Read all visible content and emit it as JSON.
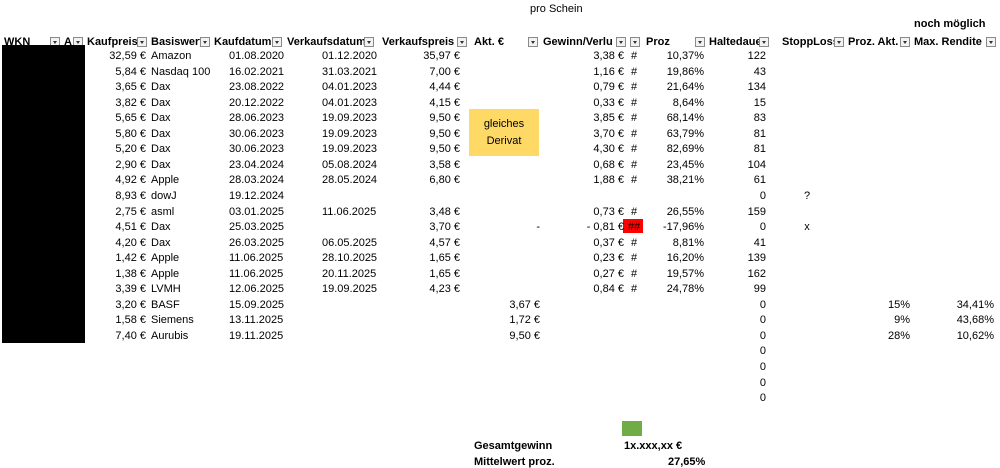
{
  "top": {
    "pro_schein": "pro Schein",
    "noch_moeglich": "noch möglich"
  },
  "headers": {
    "wkn": "WKN",
    "a": "A",
    "kaufpreis": "Kaufpreis",
    "basiswert": "Basiswert",
    "kaufdatum": "Kaufdatum",
    "verkaufsdatum": "Verkaufsdatum",
    "verkaufspreis": "Verkaufspreis",
    "akt": "Akt. €",
    "gewinn": "Gewinn/Verlu",
    "proz": "Proz",
    "haltedauer": "Haltedaue",
    "stopploss": "StoppLoss",
    "proz_akt": "Proz. Akt.",
    "max_rendite": "Max. Rendite"
  },
  "note": {
    "line1": "gleiches",
    "line2": "Derivat"
  },
  "rows": [
    {
      "kaufpreis": "32,59 €",
      "basiswert": "Amazon",
      "kaufdatum": "01.08.2020",
      "verkaufsdatum": "01.12.2020",
      "verkaufspreis": "35,97 €",
      "akt": "",
      "gewinn": "3,38 €",
      "hash": "#",
      "proz": "10,37%",
      "halte": "122",
      "stopp": "",
      "proz_akt": "",
      "max": ""
    },
    {
      "kaufpreis": "5,84 €",
      "basiswert": "Nasdaq 100",
      "kaufdatum": "16.02.2021",
      "verkaufsdatum": "31.03.2021",
      "verkaufspreis": "7,00 €",
      "akt": "",
      "gewinn": "1,16 €",
      "hash": "#",
      "proz": "19,86%",
      "halte": "43",
      "stopp": "",
      "proz_akt": "",
      "max": ""
    },
    {
      "kaufpreis": "3,65 €",
      "basiswert": "Dax",
      "kaufdatum": "23.08.2022",
      "verkaufsdatum": "04.01.2023",
      "verkaufspreis": "4,44 €",
      "akt": "",
      "gewinn": "0,79 €",
      "hash": "#",
      "proz": "21,64%",
      "halte": "134",
      "stopp": "",
      "proz_akt": "",
      "max": ""
    },
    {
      "kaufpreis": "3,82 €",
      "basiswert": "Dax",
      "kaufdatum": "20.12.2022",
      "verkaufsdatum": "04.01.2023",
      "verkaufspreis": "4,15 €",
      "akt": "",
      "gewinn": "0,33 €",
      "hash": "#",
      "proz": "8,64%",
      "halte": "15",
      "stopp": "",
      "proz_akt": "",
      "max": ""
    },
    {
      "kaufpreis": "5,65 €",
      "basiswert": "Dax",
      "kaufdatum": "28.06.2023",
      "verkaufsdatum": "19.09.2023",
      "verkaufspreis": "9,50 €",
      "akt": "",
      "gewinn": "3,85 €",
      "hash": "#",
      "proz": "68,14%",
      "halte": "83",
      "stopp": "",
      "proz_akt": "",
      "max": ""
    },
    {
      "kaufpreis": "5,80 €",
      "basiswert": "Dax",
      "kaufdatum": "30.06.2023",
      "verkaufsdatum": "19.09.2023",
      "verkaufspreis": "9,50 €",
      "akt": "",
      "gewinn": "3,70 €",
      "hash": "#",
      "proz": "63,79%",
      "halte": "81",
      "stopp": "",
      "proz_akt": "",
      "max": ""
    },
    {
      "kaufpreis": "5,20 €",
      "basiswert": "Dax",
      "kaufdatum": "30.06.2023",
      "verkaufsdatum": "19.09.2023",
      "verkaufspreis": "9,50 €",
      "akt": "",
      "gewinn": "4,30 €",
      "hash": "#",
      "proz": "82,69%",
      "halte": "81",
      "stopp": "",
      "proz_akt": "",
      "max": ""
    },
    {
      "kaufpreis": "2,90 €",
      "basiswert": "Dax",
      "kaufdatum": "23.04.2024",
      "verkaufsdatum": "05.08.2024",
      "verkaufspreis": "3,58 €",
      "akt": "",
      "gewinn": "0,68 €",
      "hash": "#",
      "proz": "23,45%",
      "halte": "104",
      "stopp": "",
      "proz_akt": "",
      "max": ""
    },
    {
      "kaufpreis": "4,92 €",
      "basiswert": "Apple",
      "kaufdatum": "28.03.2024",
      "verkaufsdatum": "28.05.2024",
      "verkaufspreis": "6,80 €",
      "akt": "",
      "gewinn": "1,88 €",
      "hash": "#",
      "proz": "38,21%",
      "halte": "61",
      "stopp": "",
      "proz_akt": "",
      "max": ""
    },
    {
      "kaufpreis": "8,93 €",
      "basiswert": "dowJ",
      "kaufdatum": "19.12.2024",
      "verkaufsdatum": "",
      "verkaufspreis": "",
      "akt": "",
      "gewinn": "",
      "hash": "",
      "proz": "",
      "halte": "0",
      "stopp": "?",
      "proz_akt": "",
      "max": ""
    },
    {
      "kaufpreis": "2,75 €",
      "basiswert": "asml",
      "kaufdatum": "03.01.2025",
      "verkaufsdatum": "11.06.2025",
      "verkaufspreis": "3,48 €",
      "akt": "",
      "gewinn": "0,73 €",
      "hash": "#",
      "proz": "26,55%",
      "halte": "159",
      "stopp": "",
      "proz_akt": "",
      "max": ""
    },
    {
      "kaufpreis": "4,51 €",
      "basiswert": "Dax",
      "kaufdatum": "25.03.2025",
      "verkaufsdatum": "",
      "verkaufspreis": "3,70 €",
      "akt": "-",
      "gewinn": "- 0,81 €",
      "hash": "##",
      "proz": "-17,96%",
      "halte": "0",
      "stopp": "x",
      "proz_akt": "",
      "max": ""
    },
    {
      "kaufpreis": "4,20 €",
      "basiswert": "Dax",
      "kaufdatum": "26.03.2025",
      "verkaufsdatum": "06.05.2025",
      "verkaufspreis": "4,57 €",
      "akt": "",
      "gewinn": "0,37 €",
      "hash": "#",
      "proz": "8,81%",
      "halte": "41",
      "stopp": "",
      "proz_akt": "",
      "max": ""
    },
    {
      "kaufpreis": "1,42 €",
      "basiswert": "Apple",
      "kaufdatum": "11.06.2025",
      "verkaufsdatum": "28.10.2025",
      "verkaufspreis": "1,65 €",
      "akt": "",
      "gewinn": "0,23 €",
      "hash": "#",
      "proz": "16,20%",
      "halte": "139",
      "stopp": "",
      "proz_akt": "",
      "max": ""
    },
    {
      "kaufpreis": "1,38 €",
      "basiswert": "Apple",
      "kaufdatum": "11.06.2025",
      "verkaufsdatum": "20.11.2025",
      "verkaufspreis": "1,65 €",
      "akt": "",
      "gewinn": "0,27 €",
      "hash": "#",
      "proz": "19,57%",
      "halte": "162",
      "stopp": "",
      "proz_akt": "",
      "max": ""
    },
    {
      "kaufpreis": "3,39 €",
      "basiswert": "LVMH",
      "kaufdatum": "12.06.2025",
      "verkaufsdatum": "19.09.2025",
      "verkaufspreis": "4,23 €",
      "akt": "",
      "gewinn": "0,84 €",
      "hash": "#",
      "proz": "24,78%",
      "halte": "99",
      "stopp": "",
      "proz_akt": "",
      "max": ""
    },
    {
      "kaufpreis": "3,20 €",
      "basiswert": "BASF",
      "kaufdatum": "15.09.2025",
      "verkaufsdatum": "",
      "verkaufspreis": "",
      "akt": "3,67 €",
      "gewinn": "",
      "hash": "",
      "proz": "",
      "halte": "0",
      "stopp": "",
      "proz_akt": "15%",
      "max": "34,41%"
    },
    {
      "kaufpreis": "1,58 €",
      "basiswert": "Siemens",
      "kaufdatum": "13.11.2025",
      "verkaufsdatum": "",
      "verkaufspreis": "",
      "akt": "1,72 €",
      "gewinn": "",
      "hash": "",
      "proz": "",
      "halte": "0",
      "stopp": "",
      "proz_akt": "9%",
      "max": "43,68%"
    },
    {
      "kaufpreis": "7,40 €",
      "basiswert": "Aurubis",
      "kaufdatum": "19.11.2025",
      "verkaufsdatum": "",
      "verkaufspreis": "",
      "akt": "9,50 €",
      "gewinn": "",
      "hash": "",
      "proz": "",
      "halte": "0",
      "stopp": "",
      "proz_akt": "28%",
      "max": "10,62%"
    }
  ],
  "extra_zeros": [
    "0",
    "0",
    "0",
    "0"
  ],
  "summary": {
    "gesamt_label": "Gesamtgewinn",
    "gesamt_value": "1x.xxx,xx €",
    "mittel_label": "Mittelwert proz.",
    "mittel_value": "27,65%"
  },
  "colors": {
    "note_bg": "#ffd966",
    "negative_flag": "#ff0000",
    "marker_green": "#70ad47"
  }
}
